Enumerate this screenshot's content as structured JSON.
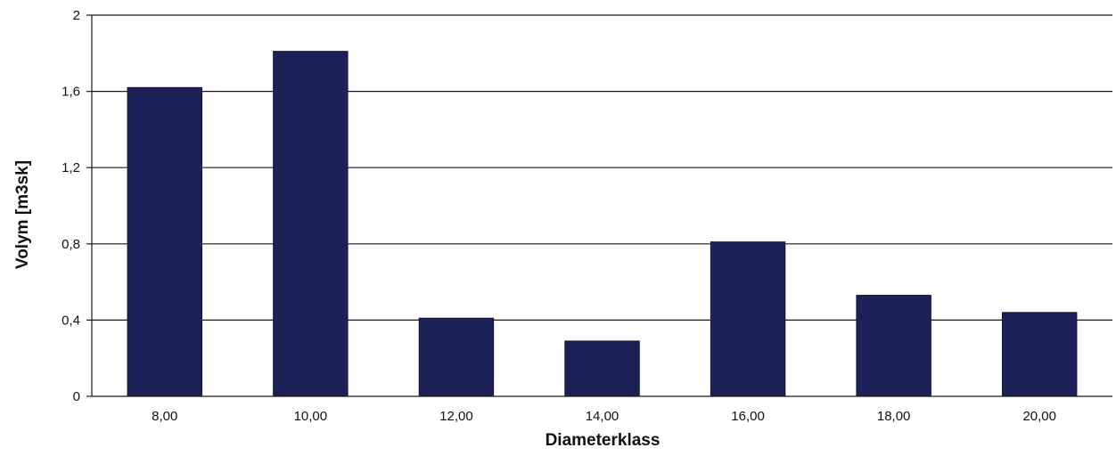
{
  "chart_data": {
    "type": "bar",
    "categories": [
      "8,00",
      "10,00",
      "12,00",
      "14,00",
      "16,00",
      "18,00",
      "20,00"
    ],
    "values": [
      1.62,
      1.81,
      0.41,
      0.29,
      0.81,
      0.53,
      0.44
    ],
    "xlabel": "Diameterklass",
    "ylabel": "Volym [m3sk]",
    "ylim": [
      0,
      2
    ],
    "yticks": [
      0,
      0.4,
      0.8,
      1.2,
      1.6,
      2
    ],
    "ytick_labels": [
      "0",
      "0,4",
      "0,8",
      "1,2",
      "1,6",
      "2"
    ],
    "grid": true,
    "legend": "none",
    "bar_color": "#1c2257"
  }
}
